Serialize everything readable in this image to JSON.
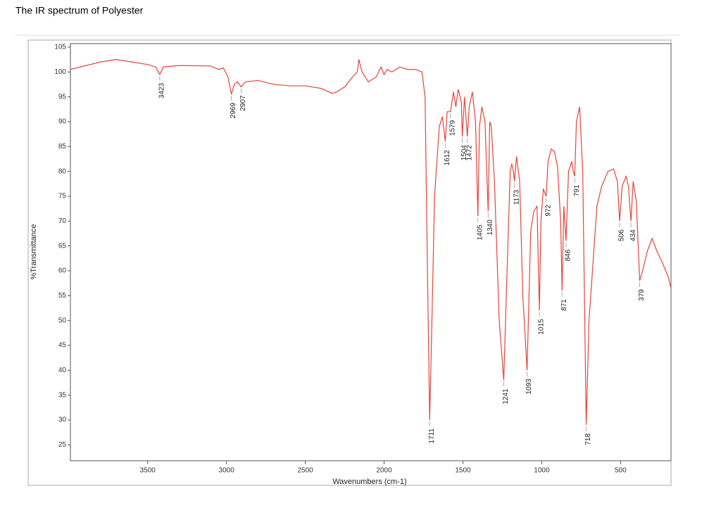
{
  "chart_data": {
    "type": "line",
    "title": "The IR spectrum of Polyester",
    "xlabel": "Wavenumbers (cm-1)",
    "ylabel": "%Transmittance",
    "xlim": [
      3990,
      180
    ],
    "ylim": [
      21.8,
      105.7
    ],
    "x_reversed": true,
    "xticks": [
      3500,
      3000,
      2500,
      2000,
      1500,
      1000,
      500
    ],
    "yticks": [
      25,
      30,
      35,
      40,
      45,
      50,
      55,
      60,
      65,
      70,
      75,
      80,
      85,
      90,
      95,
      100,
      105
    ],
    "series": [
      {
        "name": "Polyester",
        "color": "#e4443a",
        "x": [
          3990,
          3800,
          3700,
          3600,
          3500,
          3450,
          3423,
          3400,
          3300,
          3100,
          3050,
          3020,
          2990,
          2969,
          2950,
          2930,
          2907,
          2880,
          2800,
          2700,
          2600,
          2500,
          2400,
          2330,
          2300,
          2250,
          2200,
          2170,
          2160,
          2140,
          2100,
          2050,
          2020,
          2000,
          1980,
          1950,
          1900,
          1850,
          1800,
          1760,
          1740,
          1725,
          1711,
          1700,
          1680,
          1650,
          1630,
          1612,
          1600,
          1579,
          1560,
          1545,
          1530,
          1510,
          1504,
          1490,
          1472,
          1460,
          1440,
          1420,
          1405,
          1395,
          1380,
          1360,
          1340,
          1330,
          1320,
          1300,
          1270,
          1241,
          1220,
          1200,
          1190,
          1180,
          1173,
          1160,
          1140,
          1120,
          1093,
          1070,
          1050,
          1030,
          1015,
          1005,
          990,
          972,
          960,
          940,
          920,
          900,
          880,
          871,
          860,
          846,
          830,
          810,
          800,
          791,
          780,
          760,
          740,
          718,
          700,
          650,
          620,
          580,
          545,
          520,
          506,
          490,
          465,
          450,
          434,
          420,
          400,
          379,
          360,
          330,
          300,
          270,
          240,
          200,
          180
        ],
        "values": [
          100.5,
          102,
          102.5,
          102,
          101.5,
          101,
          99.5,
          101,
          101.3,
          101.2,
          100.5,
          100.8,
          99,
          95.5,
          97.5,
          98,
          97,
          98,
          98.3,
          97.5,
          97.2,
          97.2,
          96.7,
          95.7,
          96,
          97,
          99,
          100,
          102.5,
          100,
          98,
          99,
          101,
          99.5,
          100.5,
          100,
          101,
          100.5,
          100.5,
          100,
          95,
          60,
          30,
          45,
          75,
          89,
          91,
          86,
          92,
          92,
          96,
          93,
          96.5,
          94,
          87,
          95,
          87,
          93,
          96,
          90,
          71,
          89,
          93,
          90,
          72,
          90,
          89,
          78,
          50,
          38,
          60,
          80,
          81.5,
          80,
          78,
          83,
          78,
          55,
          40,
          68,
          72,
          73,
          52,
          70,
          76.5,
          75,
          82,
          84.5,
          84,
          81,
          70,
          56,
          73,
          66,
          80,
          82,
          80,
          79,
          90,
          93,
          80,
          29,
          50,
          73,
          77,
          80,
          80.5,
          78,
          70,
          77,
          79,
          77,
          70,
          78,
          74,
          58,
          60,
          64,
          66.5,
          64,
          62,
          59,
          56.5
        ]
      }
    ],
    "annotations": [
      3423,
      2969,
      2907,
      1711,
      1612,
      1579,
      1504,
      1472,
      1405,
      1340,
      1241,
      1173,
      1093,
      1015,
      972,
      871,
      846,
      791,
      718,
      506,
      434,
      379
    ]
  }
}
